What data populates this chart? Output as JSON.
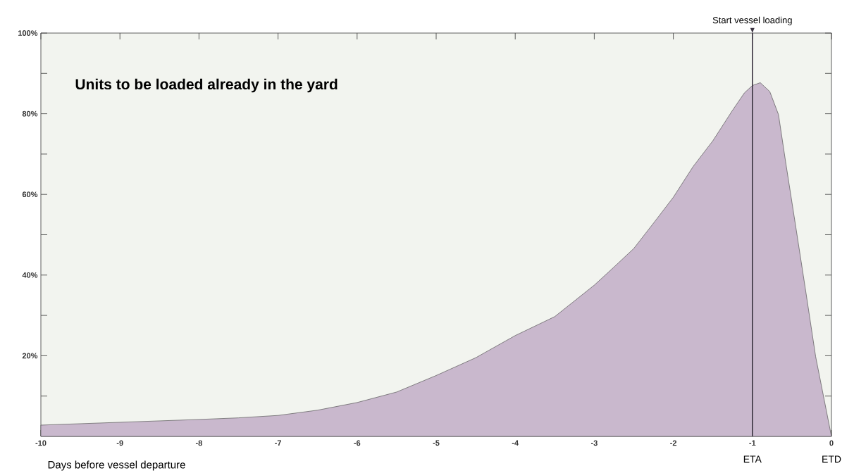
{
  "chart_data": {
    "type": "area",
    "title": "Units to be loaded already in the yard",
    "xlabel": "Days before vessel departure",
    "x": [
      -10,
      -9,
      -8,
      -7.5,
      -7,
      -6.5,
      -6,
      -5.5,
      -5,
      -4.5,
      -4,
      -3.5,
      -3,
      -2.75,
      -2.5,
      -2.25,
      -2,
      -1.75,
      -1.5,
      -1.25,
      -1.1,
      -1,
      -0.9,
      -0.78,
      -0.67,
      -0.58,
      -0.45,
      -0.33,
      -0.2,
      0
    ],
    "values": [
      2.8,
      3.5,
      4.2,
      4.6,
      5.2,
      6.5,
      8.4,
      11,
      15.1,
      19.5,
      25,
      29.7,
      37.5,
      42,
      46.6,
      52.9,
      59.3,
      66.9,
      73.3,
      80.9,
      85.2,
      87,
      87.7,
      85.5,
      79.8,
      68.1,
      51.8,
      36.6,
      19.8,
      0
    ],
    "color": "#c9b8cd",
    "xlim": [
      -10,
      0
    ],
    "xticks": [
      -10,
      -9,
      -8,
      -7,
      -6,
      -5,
      -4,
      -3,
      -2,
      -1,
      0
    ],
    "ylim": [
      0,
      100
    ],
    "yticks": [
      {
        "value": 10,
        "label": null
      },
      {
        "value": 20,
        "label": "20%"
      },
      {
        "value": 30,
        "label": null
      },
      {
        "value": 40,
        "label": "40%"
      },
      {
        "value": 50,
        "label": null
      },
      {
        "value": 60,
        "label": "60%"
      },
      {
        "value": 70,
        "label": null
      },
      {
        "value": 80,
        "label": "80%"
      },
      {
        "value": 90,
        "label": null
      },
      {
        "value": 100,
        "label": "100%"
      }
    ],
    "grid": false,
    "marker": "none",
    "line_style": "solid",
    "ref_lines": [
      {
        "axis": "x",
        "value": -1,
        "label": "Start vessel loading",
        "color": "#3a3340"
      }
    ],
    "annotations": [
      {
        "text": "ETA",
        "x": -1,
        "y": 0
      },
      {
        "text": "ETD",
        "x": 0,
        "y": 0
      }
    ]
  }
}
